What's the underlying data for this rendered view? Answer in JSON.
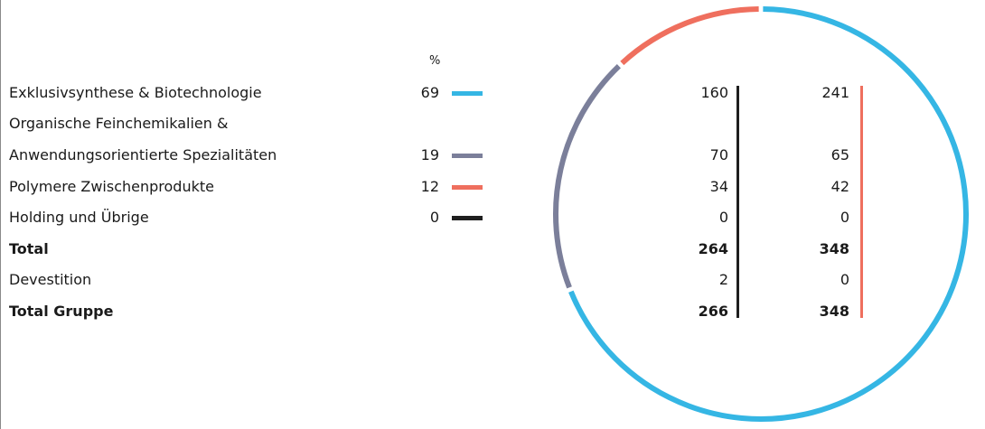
{
  "pct_header": "%",
  "colors": {
    "exklusivsynthese": "#35b6e4",
    "feinchemikalien": "#7b7f9a",
    "polymere": "#ef6f5e",
    "holding": "#1f1f1f",
    "col1_bar": "#1f1f1f",
    "col2_bar": "#ef6f5e"
  },
  "rows": [
    {
      "label": "Exklusivsynthese & Biotechnologie",
      "pct": "69",
      "v1": "160",
      "v2": "241"
    },
    {
      "label": "Organische Feinchemikalien &",
      "pct": "",
      "v1": "",
      "v2": ""
    },
    {
      "label": "Anwendungsorientierte Spezialitäten",
      "pct": "19",
      "v1": "70",
      "v2": "65"
    },
    {
      "label": "Polymere Zwischenprodukte",
      "pct": "12",
      "v1": "34",
      "v2": "42"
    },
    {
      "label": "Holding und Übrige",
      "pct": "0",
      "v1": "0",
      "v2": "0"
    },
    {
      "label": "Total",
      "pct": "",
      "v1": "264",
      "v2": "348"
    },
    {
      "label": "Devestition",
      "pct": "",
      "v1": "2",
      "v2": "0"
    },
    {
      "label": "Total Gruppe",
      "pct": "",
      "v1": "266",
      "v2": "348"
    }
  ],
  "chart_data": {
    "type": "pie",
    "style": "donut-ring",
    "categories": [
      "Exklusivsynthese & Biotechnologie",
      "Organische Feinchemikalien & Anwendungsorientierte Spezialitäten",
      "Polymere Zwischenprodukte",
      "Holding und Übrige"
    ],
    "values": [
      69,
      19,
      12,
      0
    ],
    "unit": "%",
    "colors": [
      "#35b6e4",
      "#7b7f9a",
      "#ef6f5e",
      "#1f1f1f"
    ],
    "start": "top",
    "direction": "clockwise"
  }
}
